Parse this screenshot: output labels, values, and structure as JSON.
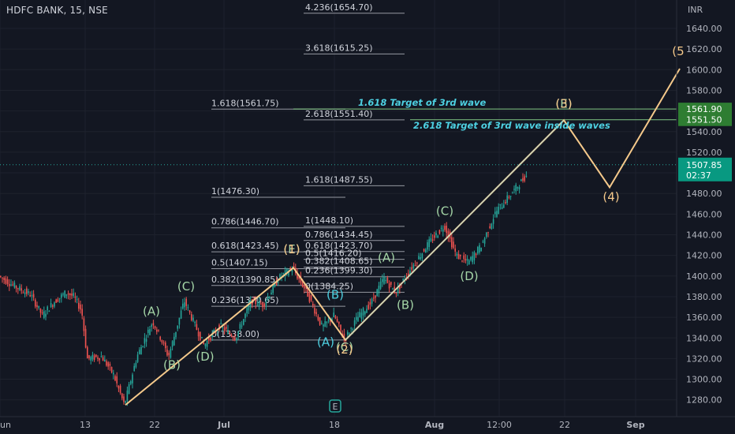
{
  "title": "HDFC BANK, 15, NSE",
  "colors": {
    "background": "#131722",
    "up": "#26a69a",
    "down": "#ef5350",
    "wave_line": "#f5c98b",
    "wave_label_green": "#a5d6a7",
    "wave_label_cyan": "#4dd0e1",
    "wave_label_orange": "#f5c98b",
    "target_line": "#81c784",
    "price_tag": "#089981",
    "grid": "#1e222d"
  },
  "chart_data": {
    "type": "candlestick",
    "ylabel": "INR",
    "y_ticks": [
      "1640.00",
      "1620.00",
      "1600.00",
      "1580.00",
      "1560.00",
      "1540.00",
      "1520.00",
      "1500.00",
      "1480.00",
      "1460.00",
      "1440.00",
      "1420.00",
      "1400.00",
      "1380.00",
      "1360.00",
      "1340.00",
      "1320.00",
      "1300.00",
      "1280.00"
    ],
    "ylim": [
      1268,
      1652
    ],
    "x_ticks": [
      "un",
      "13",
      "22",
      "Jul",
      "18",
      "Aug",
      "12:00",
      "22",
      "Sep"
    ],
    "last_price": "1507.85",
    "countdown": "02:37",
    "price_tags": [
      {
        "value": 1561.9,
        "label": "1561.90"
      },
      {
        "value": 1551.5,
        "label": "1551.50"
      }
    ],
    "price_path": [
      {
        "t": 0,
        "p": 1400
      },
      {
        "t": 20,
        "p": 1390
      },
      {
        "t": 40,
        "p": 1382
      },
      {
        "t": 55,
        "p": 1362
      },
      {
        "t": 70,
        "p": 1375
      },
      {
        "t": 85,
        "p": 1384
      },
      {
        "t": 95,
        "p": 1380
      },
      {
        "t": 105,
        "p": 1366
      },
      {
        "t": 112,
        "p": 1320
      },
      {
        "t": 130,
        "p": 1322
      },
      {
        "t": 145,
        "p": 1305
      },
      {
        "t": 159,
        "p": 1275
      },
      {
        "t": 175,
        "p": 1322
      },
      {
        "t": 195,
        "p": 1356
      },
      {
        "t": 205,
        "p": 1340
      },
      {
        "t": 215,
        "p": 1322
      },
      {
        "t": 235,
        "p": 1376
      },
      {
        "t": 250,
        "p": 1350
      },
      {
        "t": 260,
        "p": 1333
      },
      {
        "t": 280,
        "p": 1352
      },
      {
        "t": 300,
        "p": 1340
      },
      {
        "t": 320,
        "p": 1376
      },
      {
        "t": 335,
        "p": 1372
      },
      {
        "t": 355,
        "p": 1398
      },
      {
        "t": 372,
        "p": 1408
      },
      {
        "t": 390,
        "p": 1385
      },
      {
        "t": 410,
        "p": 1350
      },
      {
        "t": 425,
        "p": 1362
      },
      {
        "t": 438,
        "p": 1338
      },
      {
        "t": 455,
        "p": 1360
      },
      {
        "t": 472,
        "p": 1374
      },
      {
        "t": 488,
        "p": 1398
      },
      {
        "t": 503,
        "p": 1384
      },
      {
        "t": 518,
        "p": 1402
      },
      {
        "t": 545,
        "p": 1432
      },
      {
        "t": 565,
        "p": 1449
      },
      {
        "t": 580,
        "p": 1420
      },
      {
        "t": 595,
        "p": 1413
      },
      {
        "t": 612,
        "p": 1430
      },
      {
        "t": 630,
        "p": 1462
      },
      {
        "t": 650,
        "p": 1480
      },
      {
        "t": 668,
        "p": 1497
      }
    ],
    "wave_path": [
      {
        "t": 159,
        "p": 1275
      },
      {
        "t": 372,
        "p": 1408
      },
      {
        "t": 438,
        "p": 1338
      },
      {
        "t": 715,
        "p": 1551
      },
      {
        "t": 773,
        "p": 1486
      },
      {
        "t": 862,
        "p": 1601
      }
    ],
    "fib_levels": [
      {
        "value": 1654.7,
        "label": "4.236(1654.70)",
        "x1": 385,
        "x2": 513
      },
      {
        "value": 1615.25,
        "label": "3.618(1615.25)",
        "x1": 385,
        "x2": 513
      },
      {
        "value": 1561.75,
        "label": "1.618(1561.75)",
        "x1": 268,
        "x2": 438
      },
      {
        "value": 1551.4,
        "label": "2.618(1551.40)",
        "x1": 385,
        "x2": 513
      },
      {
        "value": 1487.55,
        "label": "1.618(1487.55)",
        "x1": 385,
        "x2": 513
      },
      {
        "value": 1476.3,
        "label": "1(1476.30)",
        "x1": 268,
        "x2": 438
      },
      {
        "value": 1448.1,
        "label": "1(1448.10)",
        "x1": 385,
        "x2": 513
      },
      {
        "value": 1446.7,
        "label": "0.786(1446.70)",
        "x1": 268,
        "x2": 438
      },
      {
        "value": 1434.45,
        "label": "0.786(1434.45)",
        "x1": 385,
        "x2": 513
      },
      {
        "value": 1423.7,
        "label": "0.618(1423.70)",
        "x1": 385,
        "x2": 513
      },
      {
        "value": 1423.45,
        "label": "0.618(1423.45)",
        "x1": 268,
        "x2": 438
      },
      {
        "value": 1416.2,
        "label": "0.5(1416.20)",
        "x1": 385,
        "x2": 513
      },
      {
        "value": 1408.65,
        "label": "0.382(1408.65)",
        "x1": 385,
        "x2": 513
      },
      {
        "value": 1407.15,
        "label": "0.5(1407.15)",
        "x1": 268,
        "x2": 438
      },
      {
        "value": 1399.3,
        "label": "0.236(1399.30)",
        "x1": 385,
        "x2": 513
      },
      {
        "value": 1390.85,
        "label": "0.382(1390.85)",
        "x1": 268,
        "x2": 438
      },
      {
        "value": 1384.25,
        "label": "0(1384.25)",
        "x1": 385,
        "x2": 513
      },
      {
        "value": 1370.65,
        "label": "0.236(1370.65)",
        "x1": 268,
        "x2": 438
      },
      {
        "value": 1338.0,
        "label": "0(1338.00)",
        "x1": 268,
        "x2": 438
      }
    ],
    "wave_labels": [
      {
        "text": "(A)",
        "t": 192,
        "p": 1362,
        "color": "green"
      },
      {
        "text": "(B)",
        "t": 218,
        "p": 1310,
        "color": "green"
      },
      {
        "text": "(C)",
        "t": 236,
        "p": 1386,
        "color": "green"
      },
      {
        "text": "(D)",
        "t": 260,
        "p": 1318,
        "color": "green"
      },
      {
        "text": "(E)",
        "t": 370,
        "p": 1422,
        "color": "green"
      },
      {
        "text": "(1)",
        "t": 370,
        "p": 1422,
        "color": "orange"
      },
      {
        "text": "(B)",
        "t": 425,
        "p": 1378,
        "color": "cyan"
      },
      {
        "text": "(A)",
        "t": 413,
        "p": 1332,
        "color": "cyan"
      },
      {
        "text": "(C)",
        "t": 437,
        "p": 1327,
        "color": "green"
      },
      {
        "text": "(2)",
        "t": 437,
        "p": 1325,
        "color": "orange"
      },
      {
        "text": "(A)",
        "t": 490,
        "p": 1414,
        "color": "green"
      },
      {
        "text": "(B)",
        "t": 514,
        "p": 1368,
        "color": "green"
      },
      {
        "text": "(C)",
        "t": 564,
        "p": 1459,
        "color": "green"
      },
      {
        "text": "(D)",
        "t": 595,
        "p": 1396,
        "color": "green"
      },
      {
        "text": "(E)",
        "t": 715,
        "p": 1563,
        "color": "green"
      },
      {
        "text": "(3)",
        "t": 715,
        "p": 1563,
        "color": "orange"
      },
      {
        "text": "(4)",
        "t": 775,
        "p": 1473,
        "color": "orange"
      },
      {
        "text": "(5",
        "t": 860,
        "p": 1614,
        "color": "orange"
      }
    ],
    "annotations": [
      {
        "text": "1.618 Target of 3rd wave",
        "t": 454,
        "p": 1565,
        "line_value": 1561.9,
        "x1": 372,
        "x2": 860
      },
      {
        "text": "2.618 Target of 3rd wave inside waves",
        "t": 524,
        "p": 1543,
        "line_value": 1551.5,
        "x1": 520,
        "x2": 860
      }
    ],
    "event_marker": {
      "text": "E",
      "t": 425
    }
  }
}
